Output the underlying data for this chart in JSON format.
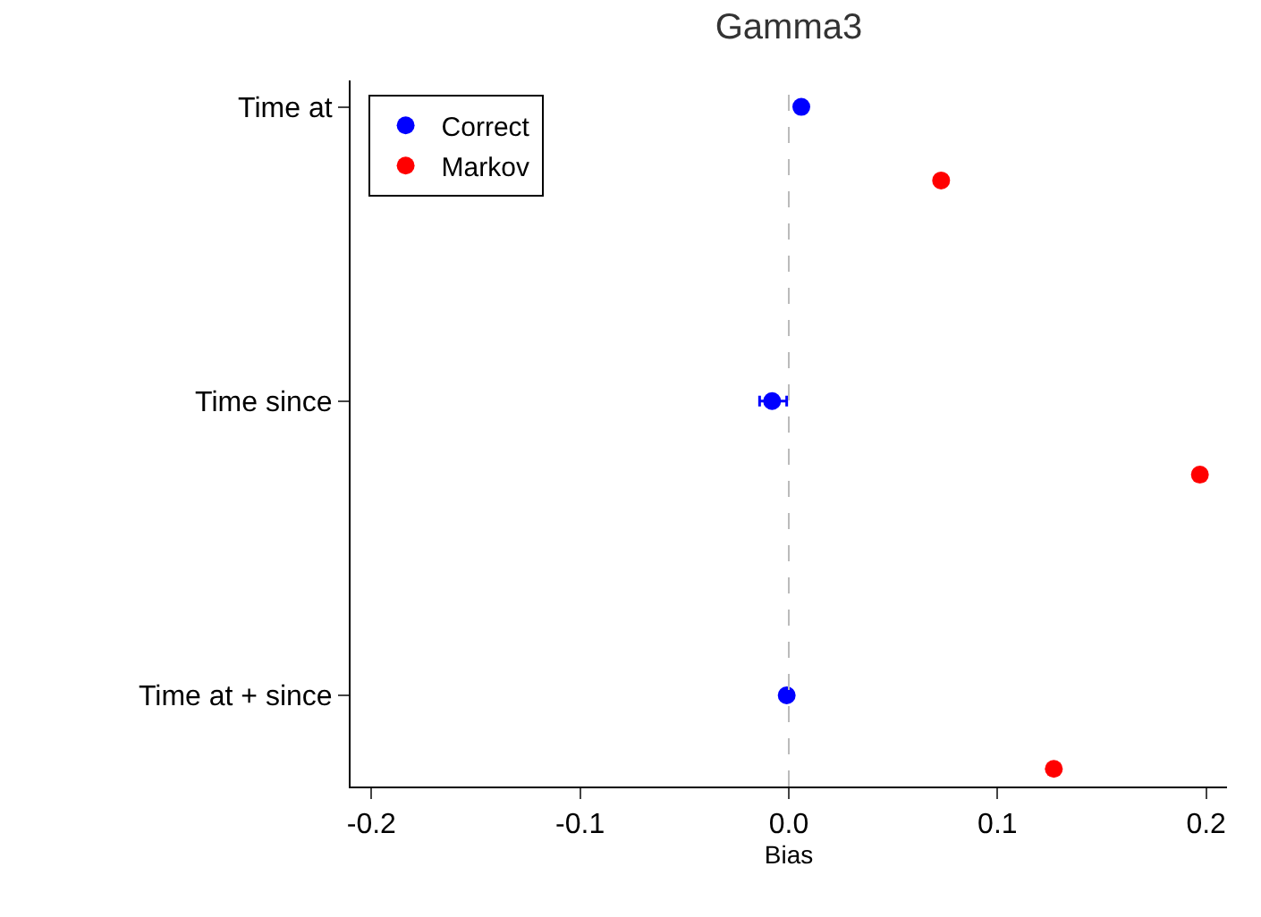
{
  "chart_data": {
    "type": "scatter",
    "orientation": "horizontal",
    "title": "Gamma3",
    "xlabel": "Bias",
    "categories": [
      "Time at",
      "Time since",
      "Time at + since"
    ],
    "series": [
      {
        "name": "Correct",
        "color": "#0000ff",
        "values": [
          0.006,
          -0.008,
          -0.001
        ],
        "errors": [
          null,
          [
            -0.014,
            -0.001
          ],
          null
        ]
      },
      {
        "name": "Markov",
        "color": "#ff0000",
        "values": [
          0.073,
          0.197,
          0.127
        ]
      }
    ],
    "xlim": [
      -0.21,
      0.21
    ],
    "xticks": [
      -0.2,
      -0.1,
      {
        "value": 0,
        "label": "0.0"
      },
      0.1,
      0.2
    ],
    "ref_lines": [
      {
        "axis": "x",
        "value": 0,
        "color": "#bbbbbb",
        "line_style": "dashed"
      }
    ],
    "grid": false,
    "legend": "top left",
    "marker": "circle"
  }
}
